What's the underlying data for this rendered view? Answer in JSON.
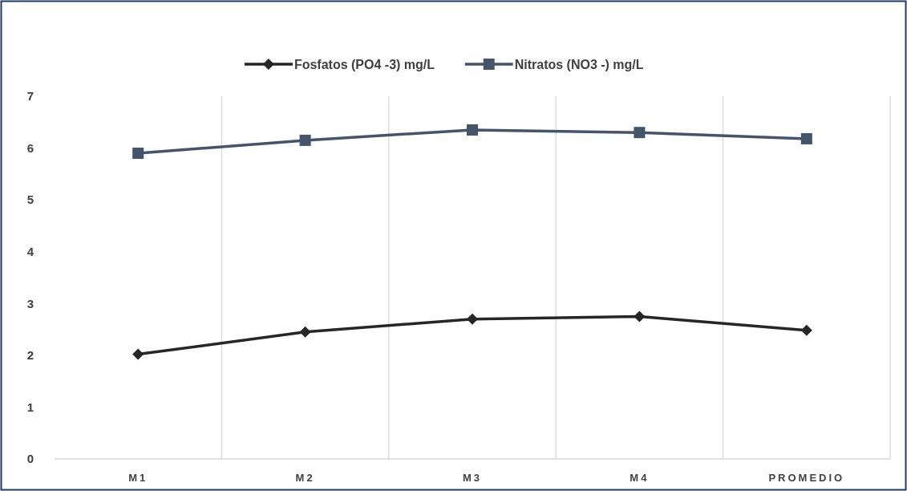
{
  "chart_data": {
    "type": "line",
    "categories": [
      "M1",
      "M2",
      "M3",
      "M4",
      "PROMEDIO"
    ],
    "series": [
      {
        "name": "Fosfatos (PO4 -3) mg/L",
        "color": "#262626",
        "marker": "diamond",
        "values": [
          2.02,
          2.45,
          2.7,
          2.75,
          2.48
        ]
      },
      {
        "name": "Nitratos (NO3 -) mg/L",
        "color": "#44546a",
        "marker": "square",
        "values": [
          5.9,
          6.15,
          6.35,
          6.3,
          6.18
        ]
      }
    ],
    "ylim": [
      0,
      7
    ],
    "yticks": [
      0,
      1,
      2,
      3,
      4,
      5,
      6,
      7
    ],
    "grid": "x",
    "legend": "top"
  }
}
